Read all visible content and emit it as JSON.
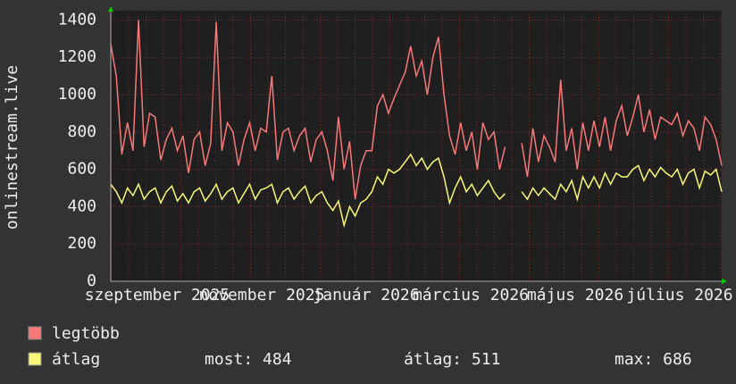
{
  "chart_data": {
    "type": "line",
    "ylabel": "onlinestream.live",
    "xlabels": [
      "szeptember 2025",
      "november 2025",
      "január 2026",
      "március 2026",
      "május 2026",
      "július 2026"
    ],
    "ylim": [
      0,
      1450
    ],
    "yticks": [
      0,
      200,
      400,
      600,
      800,
      1000,
      1200,
      1400
    ],
    "grid": true,
    "series": [
      {
        "name": "legtöbb",
        "color": "#f87878",
        "values": [
          1270,
          1100,
          680,
          850,
          700,
          1400,
          720,
          900,
          880,
          650,
          760,
          820,
          700,
          780,
          580,
          760,
          800,
          620,
          740,
          1390,
          700,
          850,
          800,
          620,
          760,
          850,
          700,
          820,
          800,
          1100,
          650,
          800,
          820,
          700,
          780,
          820,
          640,
          760,
          800,
          700,
          540,
          880,
          600,
          750,
          440,
          620,
          700,
          700,
          940,
          1000,
          900,
          980,
          1050,
          1120,
          1260,
          1100,
          1180,
          1000,
          1200,
          1310,
          1000,
          780,
          680,
          850,
          700,
          800,
          600,
          850,
          760,
          800,
          600,
          720,
          null,
          null,
          740,
          560,
          820,
          640,
          780,
          720,
          640,
          1080,
          700,
          820,
          600,
          850,
          700,
          860,
          720,
          880,
          700,
          860,
          940,
          780,
          880,
          1000,
          800,
          920,
          760,
          880,
          860,
          840,
          900,
          780,
          860,
          820,
          700,
          880,
          840,
          760,
          620
        ]
      },
      {
        "name": "átlag",
        "color": "#f8f878",
        "values": [
          520,
          480,
          420,
          500,
          460,
          520,
          440,
          480,
          500,
          420,
          480,
          510,
          430,
          470,
          420,
          480,
          500,
          430,
          470,
          520,
          440,
          480,
          500,
          420,
          470,
          520,
          440,
          490,
          500,
          520,
          420,
          480,
          500,
          440,
          480,
          510,
          420,
          460,
          480,
          420,
          380,
          430,
          300,
          400,
          350,
          420,
          440,
          480,
          560,
          520,
          600,
          580,
          600,
          640,
          680,
          620,
          660,
          600,
          640,
          660,
          560,
          420,
          500,
          560,
          480,
          520,
          460,
          500,
          540,
          480,
          440,
          470,
          null,
          null,
          480,
          440,
          500,
          460,
          500,
          470,
          440,
          520,
          480,
          540,
          440,
          560,
          500,
          560,
          500,
          580,
          520,
          580,
          560,
          560,
          600,
          620,
          540,
          600,
          560,
          610,
          580,
          560,
          600,
          520,
          580,
          600,
          500,
          590,
          570,
          600,
          480
        ]
      }
    ],
    "stats": [
      "most: 484",
      "átlag: 511",
      "max: 686"
    ]
  }
}
